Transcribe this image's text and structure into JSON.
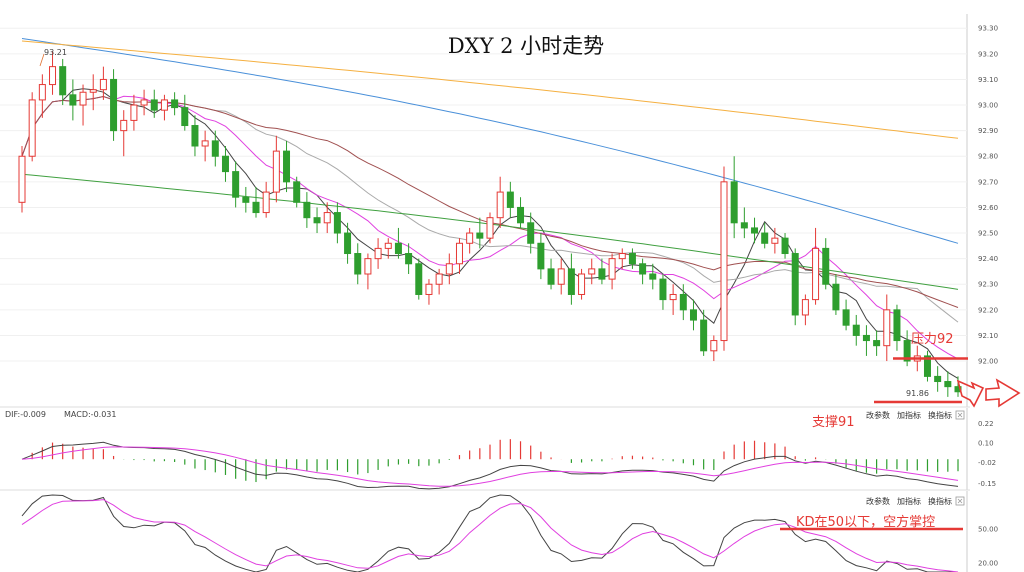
{
  "chart_data": [
    {
      "type": "candlestick",
      "title": "DXY 2 小时走势",
      "y_ticks": [
        "93.30",
        "93.20",
        "93.10",
        "93.00",
        "92.90",
        "92.80",
        "92.70",
        "92.60",
        "92.50",
        "92.40",
        "92.30",
        "92.20",
        "92.10",
        "92.00"
      ],
      "ylim": [
        91.84,
        93.34
      ],
      "high_label": "93.21",
      "low_label": "91.86",
      "annotations": {
        "resistance": "压力92",
        "support": "支撑91"
      },
      "resistance_level": 92.01,
      "support_level": 91.84,
      "colors": {
        "up": "#e53935",
        "down": "#2e9e2e",
        "ma5": "#444444",
        "ma10": "#e040e0",
        "ma20": "#aaaaaa",
        "ma30": "#a05050",
        "ma60": "#40a040",
        "ma120": "#4a90d9",
        "ma250": "#f5b041"
      },
      "candles": [
        [
          92.62,
          92.84,
          92.58,
          92.8
        ],
        [
          92.8,
          93.05,
          92.78,
          93.02
        ],
        [
          93.02,
          93.12,
          92.95,
          93.08
        ],
        [
          93.08,
          93.21,
          93.04,
          93.15
        ],
        [
          93.15,
          93.18,
          93.0,
          93.04
        ],
        [
          93.04,
          93.1,
          92.94,
          93.0
        ],
        [
          93.0,
          93.08,
          92.92,
          93.05
        ],
        [
          93.05,
          93.12,
          92.98,
          93.06
        ],
        [
          93.06,
          93.15,
          93.02,
          93.1
        ],
        [
          93.1,
          93.14,
          92.86,
          92.9
        ],
        [
          92.9,
          92.98,
          92.8,
          92.94
        ],
        [
          92.94,
          93.04,
          92.9,
          93.0
        ],
        [
          93.0,
          93.06,
          92.96,
          93.02
        ],
        [
          93.02,
          93.06,
          92.95,
          92.98
        ],
        [
          92.98,
          93.04,
          92.94,
          93.02
        ],
        [
          93.02,
          93.05,
          92.96,
          92.99
        ],
        [
          92.99,
          93.04,
          92.9,
          92.92
        ],
        [
          92.92,
          92.96,
          92.8,
          92.84
        ],
        [
          92.84,
          92.9,
          92.78,
          92.86
        ],
        [
          92.86,
          92.9,
          92.76,
          92.8
        ],
        [
          92.8,
          92.84,
          92.7,
          92.74
        ],
        [
          92.74,
          92.78,
          92.6,
          92.64
        ],
        [
          92.64,
          92.68,
          92.58,
          92.62
        ],
        [
          92.62,
          92.68,
          92.56,
          92.58
        ],
        [
          92.58,
          92.7,
          92.56,
          92.66
        ],
        [
          92.66,
          92.88,
          92.62,
          92.82
        ],
        [
          92.82,
          92.86,
          92.66,
          92.7
        ],
        [
          92.7,
          92.72,
          92.6,
          92.62
        ],
        [
          92.62,
          92.66,
          92.52,
          92.56
        ],
        [
          92.56,
          92.6,
          92.5,
          92.54
        ],
        [
          92.54,
          92.62,
          92.5,
          92.58
        ],
        [
          92.58,
          92.62,
          92.46,
          92.5
        ],
        [
          92.5,
          92.54,
          92.38,
          92.42
        ],
        [
          92.42,
          92.46,
          92.3,
          92.34
        ],
        [
          92.34,
          92.42,
          92.28,
          92.4
        ],
        [
          92.4,
          92.48,
          92.36,
          92.44
        ],
        [
          92.44,
          92.48,
          92.4,
          92.46
        ],
        [
          92.46,
          92.52,
          92.4,
          92.42
        ],
        [
          92.42,
          92.46,
          92.34,
          92.38
        ],
        [
          92.38,
          92.4,
          92.24,
          92.26
        ],
        [
          92.26,
          92.32,
          92.22,
          92.3
        ],
        [
          92.3,
          92.36,
          92.26,
          92.34
        ],
        [
          92.34,
          92.42,
          92.3,
          92.38
        ],
        [
          92.38,
          92.48,
          92.34,
          92.46
        ],
        [
          92.46,
          92.52,
          92.42,
          92.5
        ],
        [
          92.5,
          92.56,
          92.44,
          92.48
        ],
        [
          92.48,
          92.58,
          92.46,
          92.56
        ],
        [
          92.56,
          92.72,
          92.52,
          92.66
        ],
        [
          92.66,
          92.7,
          92.56,
          92.6
        ],
        [
          92.6,
          92.64,
          92.52,
          92.54
        ],
        [
          92.54,
          92.58,
          92.42,
          92.46
        ],
        [
          92.46,
          92.5,
          92.32,
          92.36
        ],
        [
          92.36,
          92.4,
          92.28,
          92.3
        ],
        [
          92.3,
          92.4,
          92.26,
          92.36
        ],
        [
          92.36,
          92.42,
          92.22,
          92.26
        ],
        [
          92.26,
          92.36,
          92.24,
          92.34
        ],
        [
          92.34,
          92.4,
          92.3,
          92.36
        ],
        [
          92.36,
          92.4,
          92.3,
          92.32
        ],
        [
          92.32,
          92.42,
          92.28,
          92.4
        ],
        [
          92.4,
          92.44,
          92.36,
          92.42
        ],
        [
          92.42,
          92.44,
          92.36,
          92.38
        ],
        [
          92.38,
          92.4,
          92.3,
          92.34
        ],
        [
          92.34,
          92.38,
          92.28,
          92.32
        ],
        [
          92.32,
          92.34,
          92.2,
          92.24
        ],
        [
          92.24,
          92.3,
          92.18,
          92.26
        ],
        [
          92.26,
          92.3,
          92.16,
          92.2
        ],
        [
          92.2,
          92.24,
          92.12,
          92.16
        ],
        [
          92.16,
          92.2,
          92.02,
          92.04
        ],
        [
          92.04,
          92.1,
          92.0,
          92.08
        ],
        [
          92.08,
          92.76,
          92.04,
          92.7
        ],
        [
          92.7,
          92.8,
          92.48,
          92.54
        ],
        [
          92.54,
          92.6,
          92.48,
          92.52
        ],
        [
          92.52,
          92.56,
          92.46,
          92.5
        ],
        [
          92.5,
          92.54,
          92.44,
          92.46
        ],
        [
          92.46,
          92.52,
          92.42,
          92.48
        ],
        [
          92.48,
          92.5,
          92.4,
          92.42
        ],
        [
          92.42,
          92.44,
          92.14,
          92.18
        ],
        [
          92.18,
          92.26,
          92.14,
          92.24
        ],
        [
          92.24,
          92.52,
          92.22,
          92.44
        ],
        [
          92.44,
          92.48,
          92.28,
          92.3
        ],
        [
          92.3,
          92.34,
          92.18,
          92.2
        ],
        [
          92.2,
          92.24,
          92.12,
          92.14
        ],
        [
          92.14,
          92.18,
          92.06,
          92.1
        ],
        [
          92.1,
          92.14,
          92.02,
          92.08
        ],
        [
          92.08,
          92.12,
          92.02,
          92.06
        ],
        [
          92.06,
          92.26,
          92.0,
          92.2
        ],
        [
          92.2,
          92.22,
          92.04,
          92.08
        ],
        [
          92.08,
          92.12,
          91.98,
          92.0
        ],
        [
          92.0,
          92.06,
          91.96,
          92.02
        ],
        [
          92.02,
          92.04,
          91.92,
          91.94
        ],
        [
          91.94,
          91.98,
          91.88,
          91.92
        ],
        [
          91.92,
          91.96,
          91.86,
          91.9
        ],
        [
          91.9,
          91.94,
          91.86,
          91.88
        ]
      ]
    },
    {
      "type": "line",
      "name_label": "MACD:",
      "dif_label": "DIF:-0.009",
      "macd_label": "MACD:-0.031",
      "y_ticks": [
        "0.22",
        "0.10",
        "-0.02",
        "-0.15"
      ],
      "ylim": [
        -0.17,
        0.24
      ],
      "buttons": [
        "改参数",
        "加指标",
        "换指标"
      ]
    },
    {
      "type": "line",
      "y_ticks": [
        "50.00",
        "20.00"
      ],
      "ylim": [
        12,
        80
      ],
      "buttons": [
        "改参数",
        "加指标",
        "换指标"
      ],
      "annotation": "KD在50以下，空方掌控",
      "level": 50
    }
  ]
}
